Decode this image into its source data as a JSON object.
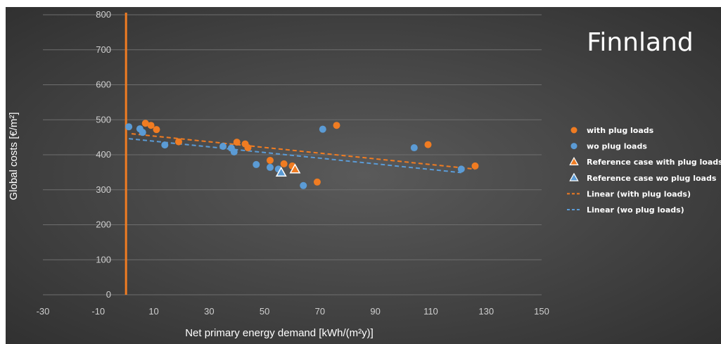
{
  "chart_data": {
    "type": "scatter",
    "title": "Finnland",
    "xlabel": "Net primary energy demand [kWh/(m²y)]",
    "ylabel": "Global costs [€/m²]",
    "xlim": [
      -30,
      150
    ],
    "ylim": [
      0,
      800
    ],
    "x_ticks": [
      "-30",
      "-10",
      "10",
      "30",
      "50",
      "70",
      "90",
      "110",
      "130",
      "150"
    ],
    "y_ticks": [
      "0",
      "100",
      "200",
      "300",
      "400",
      "500",
      "600",
      "700",
      "800"
    ],
    "grid": true,
    "legend_position": "right",
    "vertical_reference_line": {
      "x": 0,
      "color": "#f07c22"
    },
    "series": [
      {
        "name": "with plug loads",
        "marker": "circle",
        "color": "#f07c22",
        "points": [
          {
            "x": 7,
            "y": 490
          },
          {
            "x": 9,
            "y": 484
          },
          {
            "x": 11,
            "y": 472
          },
          {
            "x": 19,
            "y": 437
          },
          {
            "x": 40,
            "y": 436
          },
          {
            "x": 43,
            "y": 431
          },
          {
            "x": 44,
            "y": 420
          },
          {
            "x": 52,
            "y": 384
          },
          {
            "x": 57,
            "y": 374
          },
          {
            "x": 60,
            "y": 368
          },
          {
            "x": 69,
            "y": 322
          },
          {
            "x": 76,
            "y": 484
          },
          {
            "x": 109,
            "y": 429
          },
          {
            "x": 126,
            "y": 368
          }
        ]
      },
      {
        "name": "wo plug loads",
        "marker": "circle",
        "color": "#5b9bd5",
        "points": [
          {
            "x": 1,
            "y": 480
          },
          {
            "x": 5,
            "y": 474
          },
          {
            "x": 6,
            "y": 464
          },
          {
            "x": 14,
            "y": 428
          },
          {
            "x": 35,
            "y": 424
          },
          {
            "x": 38,
            "y": 419
          },
          {
            "x": 39,
            "y": 408
          },
          {
            "x": 47,
            "y": 372
          },
          {
            "x": 52,
            "y": 364
          },
          {
            "x": 55,
            "y": 359
          },
          {
            "x": 64,
            "y": 312
          },
          {
            "x": 71,
            "y": 473
          },
          {
            "x": 104,
            "y": 420
          },
          {
            "x": 121,
            "y": 359
          }
        ]
      },
      {
        "name": "Reference case with plug loads",
        "marker": "triangle",
        "color": "#f07c22",
        "points": [
          {
            "x": 61,
            "y": 358
          }
        ]
      },
      {
        "name": "Reference case wo plug loads",
        "marker": "triangle",
        "color": "#5b9bd5",
        "points": [
          {
            "x": 56,
            "y": 349
          }
        ]
      },
      {
        "name": "Linear (with plug loads)",
        "type": "trendline",
        "style": "dashed",
        "color": "#f07c22",
        "from": {
          "x": 2,
          "y": 460
        },
        "to": {
          "x": 126,
          "y": 359
        }
      },
      {
        "name": "Linear (wo plug loads)",
        "type": "trendline",
        "style": "dashed",
        "color": "#5b9bd5",
        "from": {
          "x": 1,
          "y": 446
        },
        "to": {
          "x": 121,
          "y": 349
        }
      }
    ]
  }
}
